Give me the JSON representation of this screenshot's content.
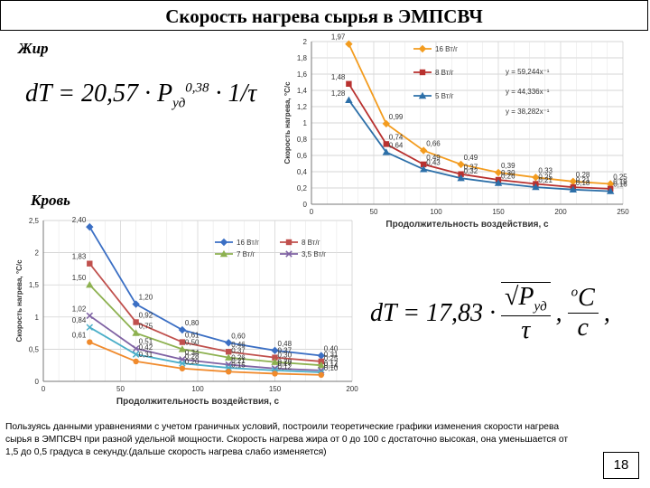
{
  "title": "Скорость нагрева сырья в ЭМПСВЧ",
  "sections": [
    "Жир",
    "Кровь"
  ],
  "formula_1": {
    "lhs": "dT = 20,57 · P",
    "sub": "уд",
    "sup": "0,38",
    "rhs": "· 1/τ"
  },
  "formula_2": {
    "lhs": "dT = 17,83 ·",
    "root": "P",
    "sub": "уд",
    "den": "τ",
    "unit_sup": "o",
    "unit": "C",
    "unit_den": "c"
  },
  "note": "Пользуясь данными уравнениями с учетом граничных условий, построили теоретические графики изменения скорости нагрева сырья в ЭМПСВЧ при разной удельной мощности. Скорость нагрева жира от 0 до 100 с достаточно высокая, она уменьшается от 1,5 до 0,5 градуса в секунду.(дальше скорость нагрева слабо изменяется)",
  "page_number": "18",
  "chart_data": [
    {
      "type": "line",
      "y_label": "Скорость нагрева, °С/с",
      "x_label": "Продолжительность воздействия, с",
      "x": [
        30,
        60,
        90,
        120,
        150,
        180,
        210,
        240
      ],
      "xlim": [
        0,
        250
      ],
      "xticks": [
        0,
        50,
        100,
        150,
        200,
        250
      ],
      "ylim": [
        0,
        2
      ],
      "yticks": [
        0,
        {
          "value": 0.2,
          "label": "0,2"
        },
        {
          "value": 0.4,
          "label": "0,4"
        },
        {
          "value": 0.6,
          "label": "0,6"
        },
        {
          "value": 0.8,
          "label": "0,8"
        },
        1,
        {
          "value": 1.2,
          "label": "1,2"
        },
        {
          "value": 1.4,
          "label": "1,4"
        },
        {
          "value": 1.6,
          "label": "1,6"
        },
        {
          "value": 1.8,
          "label": "1,8"
        },
        2
      ],
      "grid": true,
      "legend": "upper right",
      "annotations": [
        "y = 59,244x⁻¹",
        "y = 44,336x⁻¹",
        "y = 38,282x⁻¹"
      ],
      "series": [
        {
          "name": "16 Вт/г",
          "color": "#f39c1f",
          "marker": "diamond",
          "values": [
            1.97,
            0.99,
            0.66,
            0.49,
            0.39,
            0.33,
            0.28,
            0.25
          ],
          "value_labels": [
            "1,97",
            "0,99",
            "0,66",
            "0,49",
            "0,39",
            "0,33",
            "0,28",
            "0,25"
          ]
        },
        {
          "name": "8 Вт/г",
          "color": "#b8312f",
          "marker": "square",
          "values": [
            1.48,
            0.74,
            0.49,
            0.37,
            0.3,
            0.25,
            0.21,
            0.19
          ],
          "value_labels": [
            "1,48",
            "0,74",
            "0,49",
            "0,37",
            "0,30",
            "0,25",
            "0,21",
            "0,19"
          ]
        },
        {
          "name": "5 Вт/г",
          "color": "#2c6fa8",
          "marker": "triangle",
          "values": [
            1.28,
            0.64,
            0.43,
            0.32,
            0.26,
            0.21,
            0.18,
            0.16
          ],
          "value_labels": [
            "1,28",
            "0,64",
            "0,43",
            "0,32",
            "0,26",
            "0,21",
            "0,18",
            "0,16"
          ]
        }
      ]
    },
    {
      "type": "line",
      "y_label": "Скорость нагрева, °С/с",
      "x_label": "Продолжительность воздействия, с",
      "x": [
        30,
        60,
        90,
        120,
        150,
        180
      ],
      "xlim": [
        0,
        200
      ],
      "xticks": [
        0,
        50,
        100,
        150,
        200
      ],
      "ylim": [
        0,
        2.5
      ],
      "yticks": [
        0,
        {
          "value": 0.5,
          "label": "0,5"
        },
        1,
        {
          "value": 1.5,
          "label": "1,5"
        },
        2,
        {
          "value": 2.5,
          "label": "2,5"
        }
      ],
      "grid": true,
      "legend": "upper right",
      "series": [
        {
          "name": "16 Вт/г",
          "color": "#3b6fc4",
          "marker": "diamond",
          "values": [
            2.4,
            1.2,
            0.8,
            0.6,
            0.48,
            0.4
          ],
          "value_labels": [
            "2,40",
            "1,20",
            "0,80",
            "0,60",
            "0,48",
            "0,40"
          ]
        },
        {
          "name": "8 Вт/г",
          "color": "#c0504d",
          "marker": "square",
          "values": [
            1.83,
            0.92,
            0.61,
            0.46,
            0.37,
            0.31
          ],
          "value_labels": [
            "1,83",
            "0,92",
            "0,61",
            "0,46",
            "0,37",
            "0,31"
          ]
        },
        {
          "name": "7 Вт/г",
          "color": "#8db150",
          "marker": "triangle",
          "values": [
            1.5,
            0.75,
            0.5,
            0.37,
            0.3,
            0.25
          ],
          "value_labels": [
            "1,50",
            "0,75",
            "0,50",
            "0,37",
            "0,30",
            "0,25"
          ]
        },
        {
          "name": "3,5 Вт/г",
          "color": "#7f62a3",
          "marker": "x",
          "values": [
            1.02,
            0.51,
            0.34,
            0.26,
            0.2,
            0.17
          ],
          "value_labels": [
            "1,02",
            "0,51",
            "0,34",
            "0,26",
            "0,20",
            "0,17"
          ]
        },
        {
          "color": "#4aaec8",
          "marker": "x",
          "values": [
            0.84,
            0.42,
            0.28,
            0.21,
            0.17,
            0.14
          ],
          "value_labels": [
            "0,84",
            "0,42",
            "0,28",
            "0,21",
            "0,17",
            "0,14"
          ]
        },
        {
          "color": "#f08a2c",
          "marker": "circle",
          "values": [
            0.61,
            0.31,
            0.2,
            0.15,
            0.12,
            0.1
          ],
          "value_labels": [
            "0,61",
            "0,31",
            "0,20",
            "0,15",
            "0,12",
            "0,10"
          ]
        }
      ]
    }
  ]
}
